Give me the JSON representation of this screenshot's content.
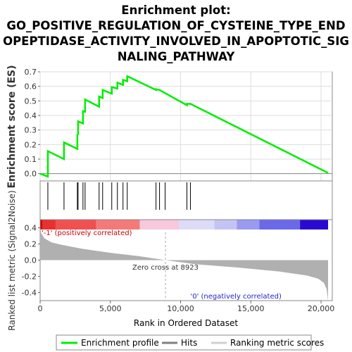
{
  "chart_data": {
    "type": "line",
    "title_lines": [
      "Enrichment plot:",
      "GO_POSITIVE_REGULATION_OF_CYSTEINE_TYPE_END",
      "OPEPTIDASE_ACTIVITY_INVOLVED_IN_APOPTOTIC_SIG",
      "NALING_PATHWAY"
    ],
    "es_panel": {
      "ylabel": "Enrichment score (ES)",
      "ylim": [
        -0.05,
        0.7
      ],
      "yticks": [
        "0.0",
        "0.1",
        "0.2",
        "0.3",
        "0.4",
        "0.5",
        "0.6",
        "0.7"
      ],
      "ytick_values": [
        0.0,
        0.1,
        0.2,
        0.3,
        0.4,
        0.5,
        0.6,
        0.7
      ],
      "grid": true,
      "line_color": "#00ee00",
      "points": [
        [
          0,
          0.0
        ],
        [
          550,
          -0.02
        ],
        [
          551,
          0.155
        ],
        [
          1700,
          0.1
        ],
        [
          1701,
          0.215
        ],
        [
          2650,
          0.17
        ],
        [
          2651,
          0.265
        ],
        [
          2700,
          0.27
        ],
        [
          2701,
          0.36
        ],
        [
          3050,
          0.345
        ],
        [
          3051,
          0.43
        ],
        [
          3200,
          0.425
        ],
        [
          3201,
          0.51
        ],
        [
          4200,
          0.46
        ],
        [
          4201,
          0.53
        ],
        [
          4450,
          0.52
        ],
        [
          4451,
          0.575
        ],
        [
          5100,
          0.55
        ],
        [
          5101,
          0.595
        ],
        [
          5500,
          0.585
        ],
        [
          5501,
          0.625
        ],
        [
          5900,
          0.61
        ],
        [
          5901,
          0.645
        ],
        [
          6200,
          0.635
        ],
        [
          6201,
          0.67
        ],
        [
          8250,
          0.575
        ],
        [
          8251,
          0.58
        ],
        [
          8500,
          0.575
        ],
        [
          10450,
          0.47
        ],
        [
          10451,
          0.48
        ],
        [
          10700,
          0.48
        ],
        [
          20500,
          0.005
        ]
      ]
    },
    "hits": [
      550,
      1700,
      2650,
      2700,
      3050,
      3200,
      4200,
      4450,
      5100,
      5500,
      5900,
      6200,
      8250,
      8500,
      8900,
      10450,
      10700
    ],
    "ranked_panel": {
      "ylabel": "Ranked list metric (Signal2Noise)",
      "ylim": [
        -0.5,
        0.5
      ],
      "yticks": [
        "0.4",
        "0.2",
        "0.0",
        "-0.2",
        "-0.4"
      ],
      "ytick_values": [
        0.4,
        0.2,
        0.0,
        -0.2,
        -0.4
      ],
      "fill_color": "#b0b0b0",
      "profile": [
        [
          0,
          0.42
        ],
        [
          80,
          0.33
        ],
        [
          300,
          0.27
        ],
        [
          800,
          0.22
        ],
        [
          1500,
          0.19
        ],
        [
          3000,
          0.14
        ],
        [
          5000,
          0.09
        ],
        [
          7000,
          0.05
        ],
        [
          8923,
          0.0
        ],
        [
          11000,
          -0.05
        ],
        [
          14000,
          -0.09
        ],
        [
          17000,
          -0.14
        ],
        [
          19000,
          -0.19
        ],
        [
          19800,
          -0.23
        ],
        [
          20200,
          -0.28
        ],
        [
          20400,
          -0.36
        ],
        [
          20500,
          -0.5
        ]
      ],
      "zero_cross_label": "Zero cross at 8923",
      "zero_cross": 8923,
      "pos_label": "'-1' (positively correlated)",
      "neg_label": "'0' (negatively correlated)"
    },
    "color_bar": [
      [
        0,
        150,
        "#d00000"
      ],
      [
        150,
        1100,
        "#e83030"
      ],
      [
        1100,
        4000,
        "#f05050"
      ],
      [
        4000,
        7100,
        "#f47a7a"
      ],
      [
        7100,
        9900,
        "#f8c8dc"
      ],
      [
        9900,
        12400,
        "#dcdcf8"
      ],
      [
        12400,
        14000,
        "#c4c4f4"
      ],
      [
        14000,
        15600,
        "#9a9af0"
      ],
      [
        15600,
        18500,
        "#6a6ae8"
      ],
      [
        18500,
        20500,
        "#2a0ad0"
      ]
    ],
    "x": {
      "label": "Rank in Ordered Dataset",
      "xlim": [
        0,
        20800
      ],
      "ticks": [
        "0",
        "5,000",
        "10,000",
        "15,000",
        "20,000"
      ],
      "tick_values": [
        0,
        5000,
        10000,
        15000,
        20000
      ]
    },
    "legend": [
      {
        "label": "Enrichment profile",
        "color": "#00ee00"
      },
      {
        "label": "Hits",
        "color": "#808080"
      },
      {
        "label": "Ranking metric scores",
        "color": "#d0d0d0"
      }
    ]
  }
}
